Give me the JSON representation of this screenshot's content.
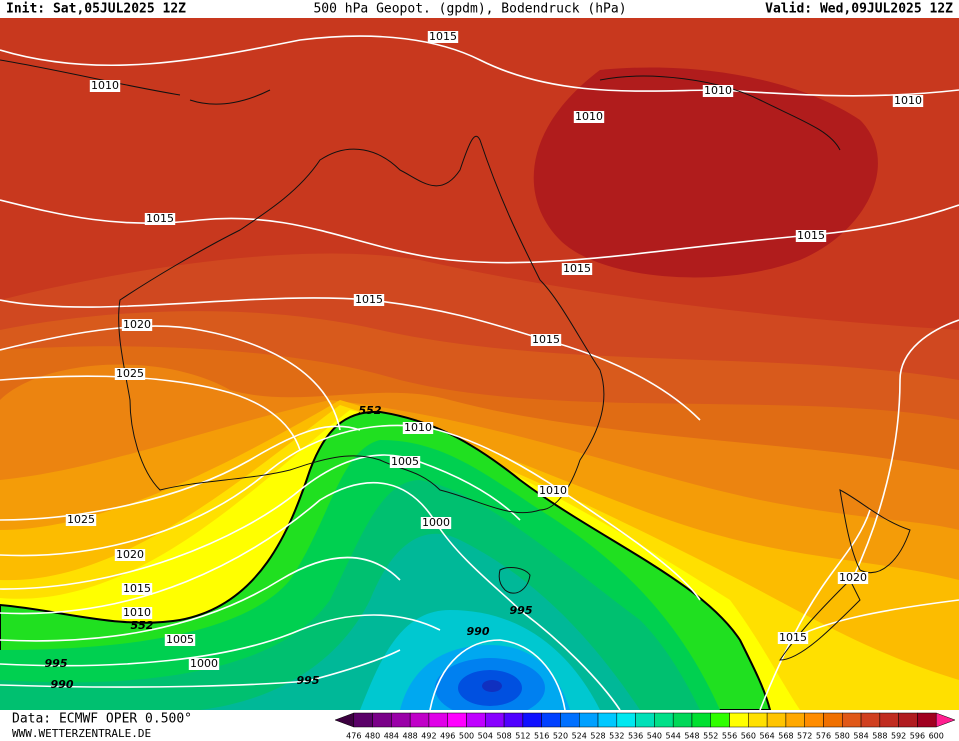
{
  "header": {
    "init": "Init: Sat,05JUL2025 12Z",
    "title": "500 hPa Geopot. (gpdm), Bodendruck (hPa)",
    "valid": "Valid: Wed,09JUL2025 12Z"
  },
  "footer": {
    "source": "Data: ECMWF OPER 0.500°",
    "website": "WWW.WETTERZENTRALE.DE"
  },
  "contour_labels": [
    "1015",
    "1010",
    "1010",
    "1010",
    "1010",
    "1015",
    "1015",
    "1015",
    "1015",
    "1020",
    "1015",
    "1025",
    "552",
    "1010",
    "1005",
    "1010",
    "1000",
    "1025",
    "1020",
    "1020",
    "1015",
    "995",
    "1010",
    "552",
    "990",
    "1015",
    "1005",
    "995",
    "1000",
    "995",
    "990"
  ],
  "colorbar": {
    "ticks": [
      476,
      480,
      484,
      488,
      492,
      496,
      500,
      504,
      508,
      512,
      516,
      520,
      524,
      528,
      532,
      536,
      540,
      544,
      548,
      552,
      556,
      560,
      564,
      568,
      572,
      576,
      580,
      584,
      588,
      592,
      596,
      600
    ],
    "colors": [
      "#3c0040",
      "#5a0068",
      "#7a0088",
      "#9a00a8",
      "#c000c8",
      "#e000e8",
      "#ff00ff",
      "#c000ff",
      "#8800ff",
      "#5000ff",
      "#1010ff",
      "#0040ff",
      "#0070ff",
      "#00a0ff",
      "#00c8ff",
      "#00e8f0",
      "#00e0b8",
      "#00e088",
      "#00d858",
      "#00e030",
      "#30ff00",
      "#ffff00",
      "#ffe000",
      "#ffc400",
      "#ffa800",
      "#ff8c00",
      "#f07000",
      "#e05818",
      "#d04020",
      "#c02c20",
      "#b01c20",
      "#a00020",
      "#ff2090"
    ]
  }
}
